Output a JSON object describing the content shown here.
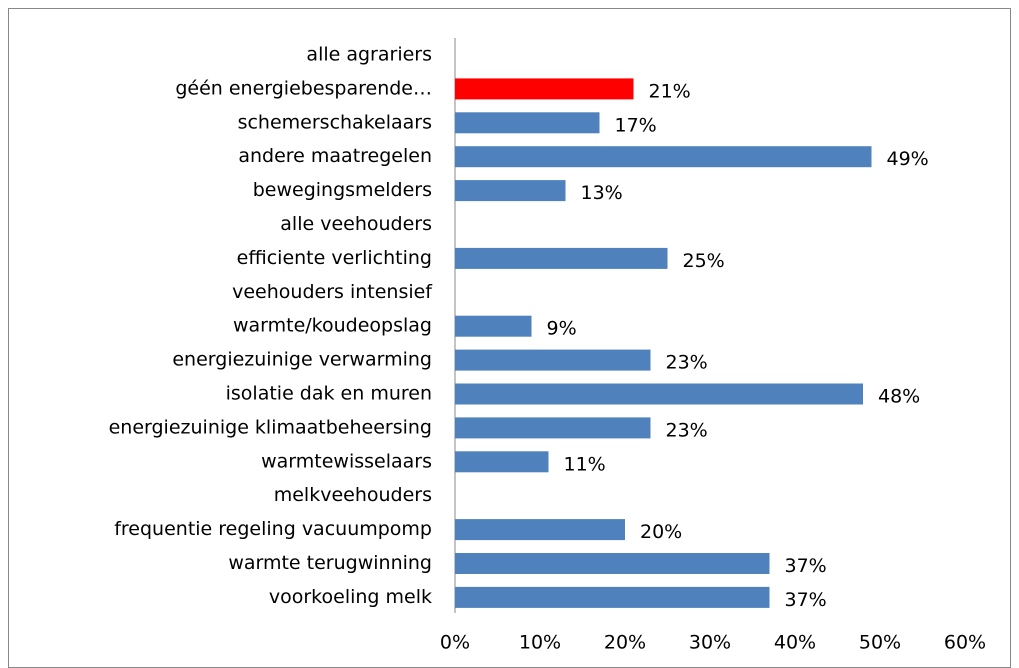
{
  "chart_data": {
    "type": "bar",
    "orientation": "horizontal",
    "categories": [
      "alle agrariers",
      "géén energiebesparende…",
      "schemerschakelaars",
      "andere maatregelen",
      "bewegingsmelders",
      "alle veehouders",
      "efficiente verlichting",
      "veehouders intensief",
      "warmte/koudeopslag",
      "energiezuinige verwarming",
      "isolatie dak en muren",
      "energiezuinige klimaatbeheersing",
      "warmtewisselaars",
      "melkveehouders",
      "frequentie regeling vacuumpomp",
      "warmte terugwinning",
      "voorkoeling melk"
    ],
    "values": [
      null,
      21,
      17,
      49,
      13,
      null,
      25,
      null,
      9,
      23,
      48,
      23,
      11,
      null,
      20,
      37,
      37
    ],
    "value_labels": [
      null,
      "21%",
      "17%",
      "49%",
      "13%",
      null,
      "25%",
      null,
      "9%",
      "23%",
      "48%",
      "23%",
      "11%",
      null,
      "20%",
      "37%",
      "37%"
    ],
    "colors": [
      "#4f81bd",
      "#ff0000",
      "#4f81bd",
      "#4f81bd",
      "#4f81bd",
      "#4f81bd",
      "#4f81bd",
      "#4f81bd",
      "#4f81bd",
      "#4f81bd",
      "#4f81bd",
      "#4f81bd",
      "#4f81bd",
      "#4f81bd",
      "#4f81bd",
      "#4f81bd",
      "#4f81bd"
    ],
    "xlim": [
      0,
      60
    ],
    "xticks": [
      {
        "value": 0,
        "label": "0%"
      },
      {
        "value": 10,
        "label": "10%"
      },
      {
        "value": 20,
        "label": "20%"
      },
      {
        "value": 30,
        "label": "30%"
      },
      {
        "value": 40,
        "label": "40%"
      },
      {
        "value": 50,
        "label": "50%"
      },
      {
        "value": 60,
        "label": "60%"
      }
    ],
    "grid": false
  }
}
